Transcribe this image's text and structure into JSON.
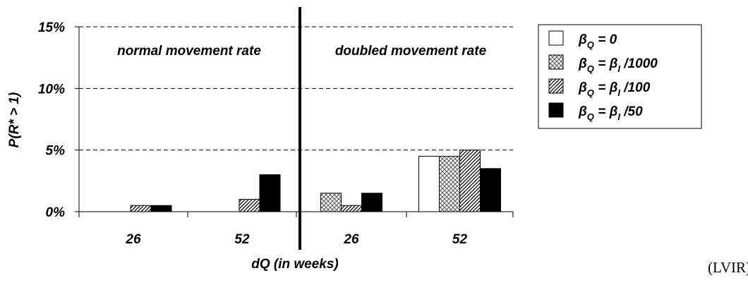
{
  "chart_data": {
    "type": "bar",
    "ylabel": "P(R* > 1)",
    "xlabel": "dQ (in weeks)",
    "yticks": [
      "0%",
      "5%",
      "10%",
      "15%"
    ],
    "ylim": [
      0,
      15
    ],
    "grid": "horizontal dashed",
    "legend_placement": "top-right",
    "panels": [
      {
        "label": "normal movement rate",
        "categories": [
          "26",
          "52"
        ]
      },
      {
        "label": "doubled movement rate",
        "categories": [
          "26",
          "52"
        ]
      }
    ],
    "categories": [
      "26",
      "52",
      "26",
      "52"
    ],
    "series": [
      {
        "name": "βQ = 0",
        "legend_parts": [
          "β",
          "Q",
          " = 0",
          "",
          ""
        ],
        "pattern": "empty",
        "values": [
          0,
          0,
          0,
          4.5
        ]
      },
      {
        "name": "βQ = βI /1000",
        "legend_parts": [
          "β",
          "Q",
          " = ",
          "I",
          " /1000"
        ],
        "pattern": "crosshatch",
        "values": [
          0,
          0,
          1.5,
          4.5
        ]
      },
      {
        "name": "βQ = βI /100",
        "legend_parts": [
          "β",
          "Q",
          " = ",
          "I",
          " /100"
        ],
        "pattern": "diagonal",
        "values": [
          0.5,
          1.0,
          0.5,
          5.0
        ]
      },
      {
        "name": "βQ = βI /50",
        "legend_parts": [
          "β",
          "Q",
          " = ",
          "I",
          " /50"
        ],
        "pattern": "solid",
        "values": [
          0.5,
          3.0,
          1.5,
          3.5
        ]
      }
    ]
  },
  "corner_label": "(LVIR)"
}
